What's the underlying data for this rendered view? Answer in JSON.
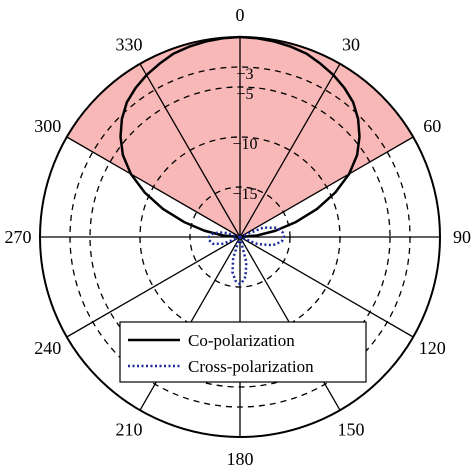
{
  "chart_data": {
    "type": "polar",
    "angle_unit": "degrees",
    "angle_zero": "top",
    "angle_direction": "clockwise",
    "angle_ticks": [
      "0",
      "30",
      "60",
      "90",
      "120",
      "150",
      "180",
      "210",
      "240",
      "270",
      "300",
      "330"
    ],
    "radial_ticks": [
      {
        "value": -3,
        "label": "−3"
      },
      {
        "value": -5,
        "label": "−5"
      },
      {
        "value": -10,
        "label": "−10"
      },
      {
        "value": -15,
        "label": "−15"
      }
    ],
    "radial_range": [
      -20,
      0
    ],
    "shaded_sector": {
      "from": -60,
      "to": 60,
      "inner": -20,
      "outer": 0,
      "color": "#f9b8b8"
    },
    "series": [
      {
        "name": "Co-polarization",
        "color": "#000000",
        "style": "solid",
        "points": [
          [
            -90,
            -20
          ],
          [
            -85,
            -18.3
          ],
          [
            -80,
            -16.4
          ],
          [
            -75,
            -14.2
          ],
          [
            -70,
            -11.8
          ],
          [
            -65,
            -9.5
          ],
          [
            -60,
            -7.4
          ],
          [
            -55,
            -5.7
          ],
          [
            -50,
            -4.4
          ],
          [
            -45,
            -3.3
          ],
          [
            -40,
            -2.4
          ],
          [
            -35,
            -1.8
          ],
          [
            -30,
            -1.3
          ],
          [
            -25,
            -0.9
          ],
          [
            -20,
            -0.5
          ],
          [
            -15,
            -0.3
          ],
          [
            -10,
            -0.15
          ],
          [
            -5,
            -0.05
          ],
          [
            0,
            0
          ],
          [
            5,
            -0.05
          ],
          [
            10,
            -0.15
          ],
          [
            15,
            -0.3
          ],
          [
            20,
            -0.5
          ],
          [
            25,
            -0.9
          ],
          [
            30,
            -1.3
          ],
          [
            35,
            -1.8
          ],
          [
            40,
            -2.4
          ],
          [
            45,
            -3.3
          ],
          [
            50,
            -4.4
          ],
          [
            55,
            -5.7
          ],
          [
            60,
            -7.4
          ],
          [
            65,
            -9.5
          ],
          [
            70,
            -11.8
          ],
          [
            75,
            -14.2
          ],
          [
            80,
            -16.4
          ],
          [
            85,
            -18.3
          ],
          [
            90,
            -20
          ]
        ]
      },
      {
        "name": "Cross-polarization",
        "color": "#1a2a9c",
        "style": "dotted",
        "points": [
          [
            60,
            -20
          ],
          [
            68,
            -17.5
          ],
          [
            76,
            -16.2
          ],
          [
            84,
            -15.7
          ],
          [
            90,
            -15.6
          ],
          [
            96,
            -15.8
          ],
          [
            104,
            -16.6
          ],
          [
            112,
            -18.1
          ],
          [
            120,
            -20
          ],
          [
            160,
            -20
          ],
          [
            166,
            -17.4
          ],
          [
            172,
            -16.0
          ],
          [
            178,
            -15.4
          ],
          [
            180,
            -15.3
          ],
          [
            186,
            -15.6
          ],
          [
            192,
            -16.4
          ],
          [
            198,
            -17.8
          ],
          [
            205,
            -20
          ],
          [
            240,
            -20
          ],
          [
            248,
            -18.2
          ],
          [
            256,
            -17.2
          ],
          [
            264,
            -16.9
          ],
          [
            270,
            -16.9
          ],
          [
            278,
            -17.3
          ],
          [
            286,
            -18.3
          ],
          [
            295,
            -20
          ]
        ]
      }
    ],
    "legend": {
      "position": "bottom-center",
      "entries": [
        "Co-polarization",
        "Cross-polarization"
      ]
    }
  }
}
